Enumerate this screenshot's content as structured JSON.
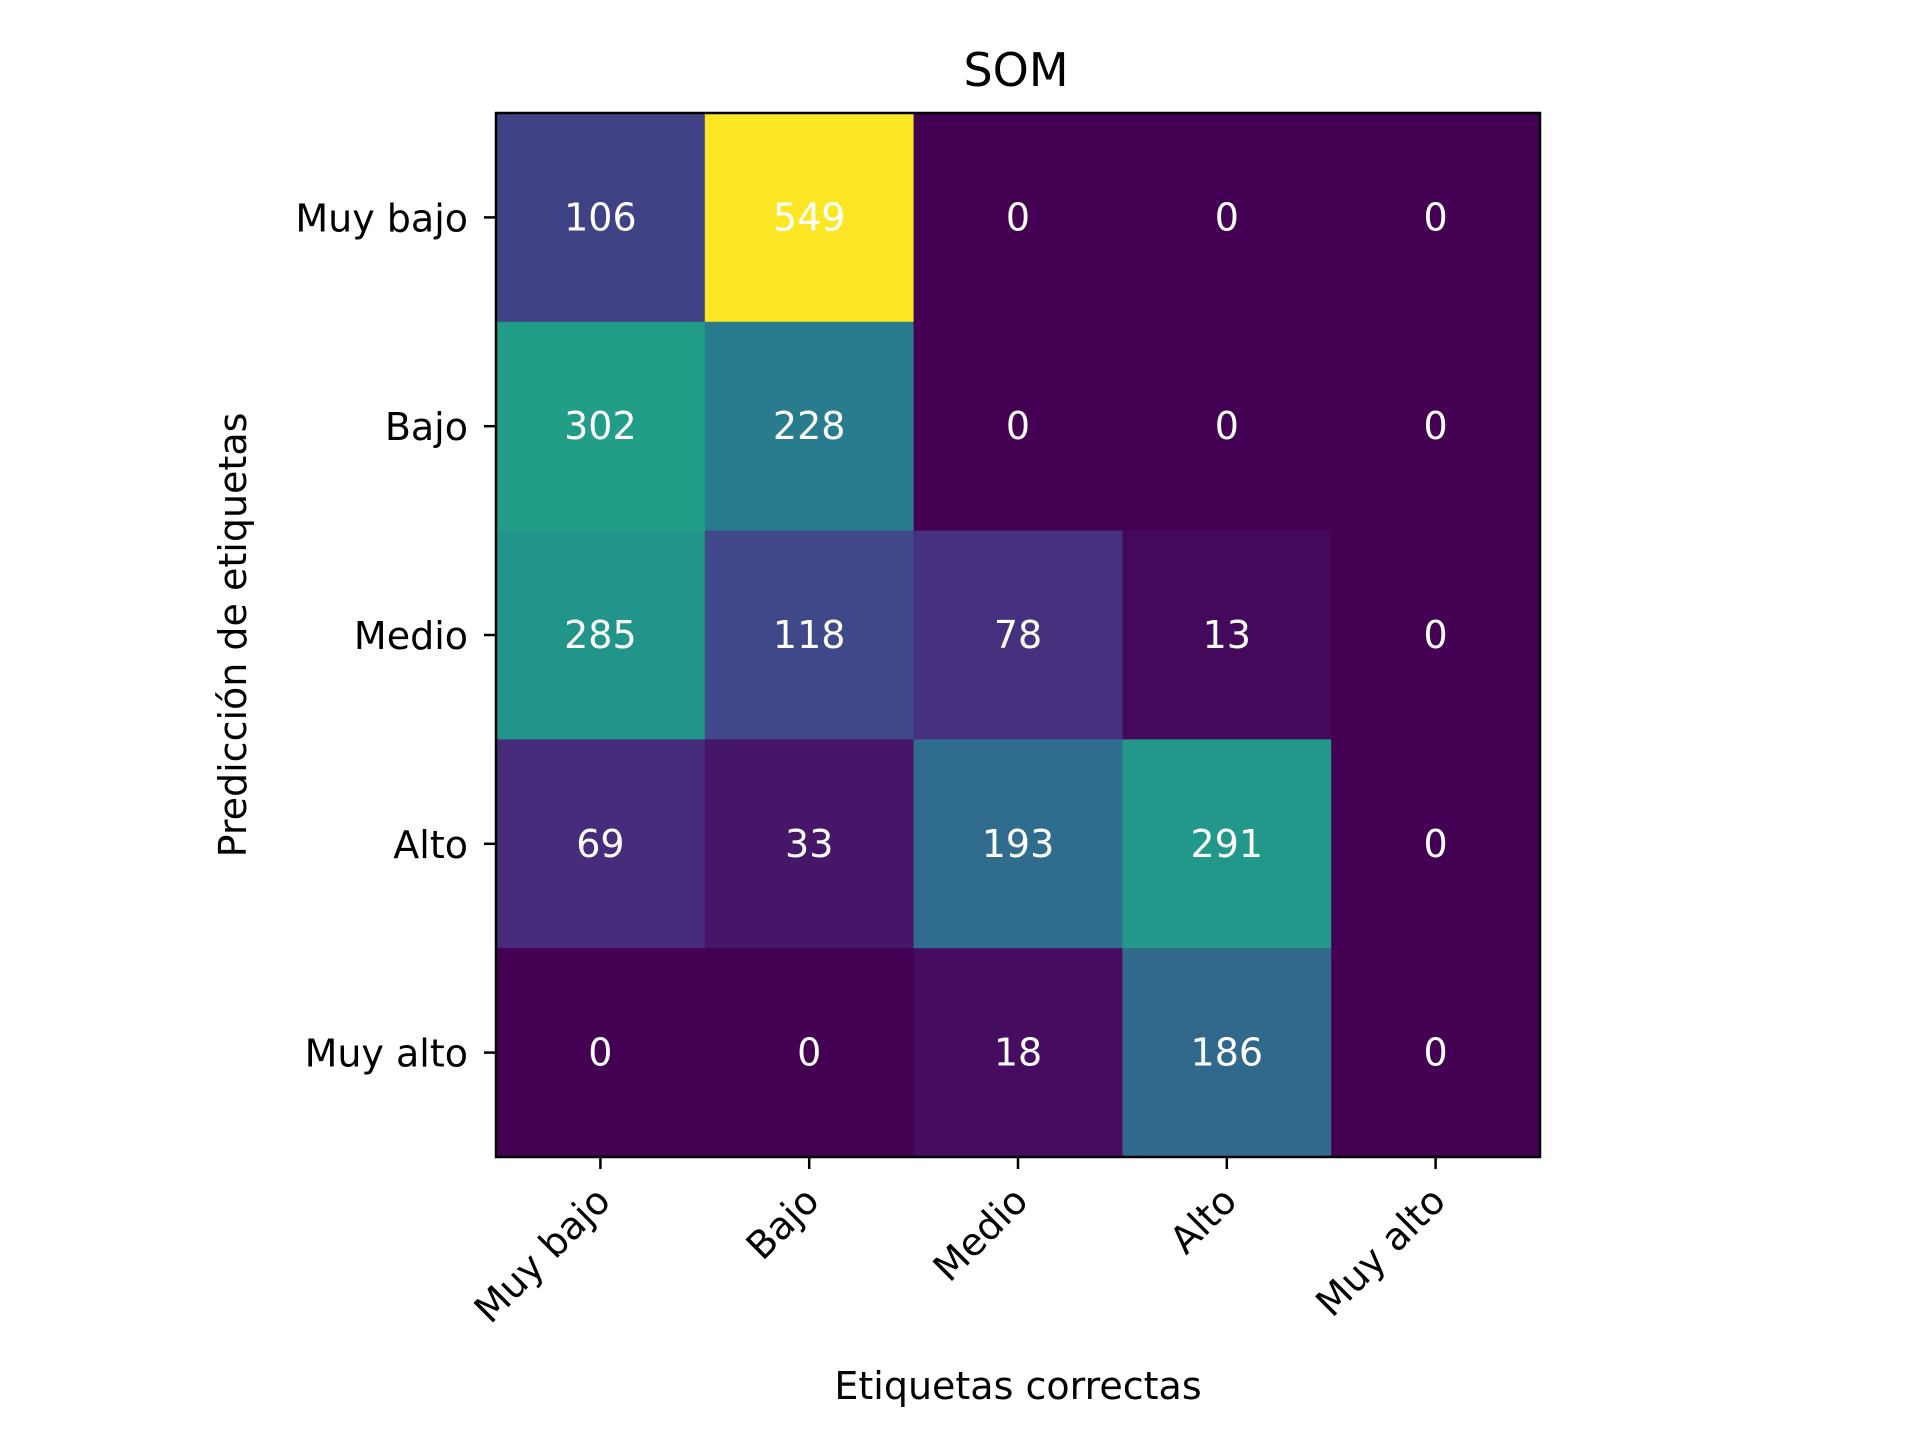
{
  "chart_data": {
    "type": "heatmap",
    "title": "SOM",
    "xlabel": "Etiquetas correctas",
    "ylabel": "Predicción de etiquetas",
    "x_categories": [
      "Muy bajo",
      "Bajo",
      "Medio",
      "Alto",
      "Muy alto"
    ],
    "y_categories": [
      "Muy bajo",
      "Bajo",
      "Medio",
      "Alto",
      "Muy alto"
    ],
    "values": [
      [
        106,
        549,
        0,
        0,
        0
      ],
      [
        302,
        228,
        0,
        0,
        0
      ],
      [
        285,
        118,
        78,
        13,
        0
      ],
      [
        69,
        33,
        193,
        291,
        0
      ],
      [
        0,
        0,
        18,
        186,
        0
      ]
    ],
    "colormap": "viridis",
    "value_range": [
      0,
      549
    ],
    "annotation_color": "#ffffff",
    "legend": "none",
    "grid": false
  }
}
